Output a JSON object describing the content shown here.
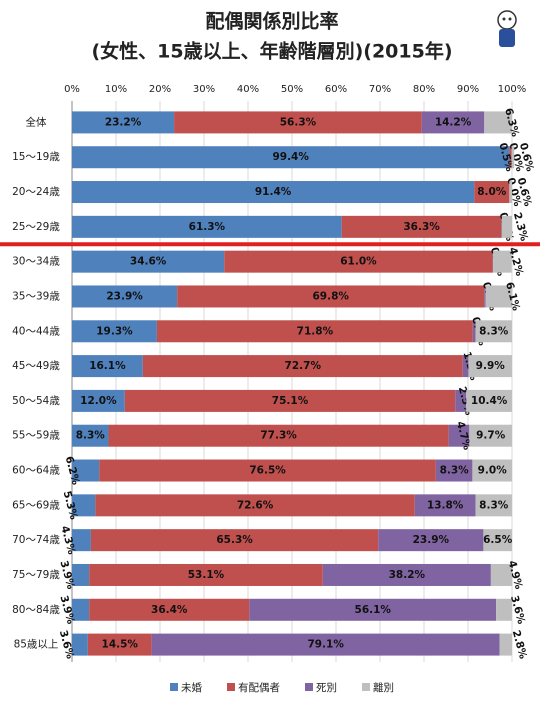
{
  "chart_data": {
    "type": "stacked-bar",
    "orientation": "horizontal",
    "title": "配偶関係別比率",
    "subtitle": "(女性、15歳以上、年齢階層別)(2015年)",
    "categories": [
      "全体",
      "15〜19歳",
      "20〜24歳",
      "25〜29歳",
      "30〜34歳",
      "35〜39歳",
      "40〜44歳",
      "45〜49歳",
      "50〜54歳",
      "55〜59歳",
      "60〜64歳",
      "65〜69歳",
      "70〜74歳",
      "75〜79歳",
      "80〜84歳",
      "85歳以上"
    ],
    "series": [
      {
        "name": "未婚",
        "color": "#4f81bd",
        "values": [
          23.2,
          99.4,
          91.4,
          61.3,
          34.6,
          23.9,
          19.3,
          16.1,
          12.0,
          8.3,
          6.2,
          5.3,
          4.3,
          3.9,
          3.9,
          3.6
        ],
        "value_labels": [
          "23.2%",
          "99.4%",
          "91.4%",
          "61.3%",
          "34.6%",
          "23.9%",
          "19.3%",
          "16.1%",
          "12.0%",
          "8.3%",
          "6.2%",
          "5.3%",
          "4.3%",
          "3.9%",
          "3.9%",
          "3.6%"
        ]
      },
      {
        "name": "有配偶者",
        "color": "#c0504d",
        "values": [
          56.3,
          0.5,
          8.0,
          36.3,
          61.0,
          69.8,
          71.8,
          72.7,
          75.1,
          77.3,
          76.5,
          72.6,
          65.3,
          53.1,
          36.4,
          14.5
        ],
        "value_labels": [
          "56.3%",
          "0.5%",
          "8.0%",
          "36.3%",
          "61.0%",
          "69.8%",
          "71.8%",
          "72.7%",
          "75.1%",
          "77.3%",
          "76.5%",
          "72.6%",
          "65.3%",
          "53.1%",
          "36.4%",
          "14.5%"
        ]
      },
      {
        "name": "死別",
        "color": "#8064a2",
        "values": [
          14.2,
          0.0,
          0.0,
          0.1,
          0.1,
          0.3,
          0.6,
          1.3,
          2.5,
          4.7,
          8.3,
          13.8,
          23.9,
          38.2,
          56.1,
          79.1
        ],
        "value_labels": [
          "14.2%",
          "0.0%",
          "0.0%",
          "0.1%",
          "0.1%",
          "0.3%",
          "0.6%",
          "1.3%",
          "2.5%",
          "4.7%",
          "8.3%",
          "13.8%",
          "23.9%",
          "38.2%",
          "56.1%",
          "79.1%"
        ]
      },
      {
        "name": "離別",
        "color": "#bfbfbf",
        "values": [
          6.3,
          0.6,
          0.6,
          2.3,
          4.2,
          6.1,
          8.3,
          9.9,
          10.4,
          9.7,
          9.0,
          8.3,
          6.5,
          4.9,
          3.6,
          2.8
        ],
        "value_labels": [
          "6.3%",
          "0.6%",
          "0.6%",
          "2.3%",
          "4.2%",
          "6.1%",
          "8.3%",
          "9.9%",
          "10.4%",
          "9.7%",
          "9.0%",
          "8.3%",
          "6.5%",
          "4.9%",
          "3.6%",
          "2.8%"
        ]
      }
    ],
    "xlim": [
      0,
      100
    ],
    "xticks": [
      {
        "value": 0,
        "label": "0%"
      },
      {
        "value": 10,
        "label": "10%"
      },
      {
        "value": 20,
        "label": "20%"
      },
      {
        "value": 30,
        "label": "30%"
      },
      {
        "value": 40,
        "label": "40%"
      },
      {
        "value": 50,
        "label": "50%"
      },
      {
        "value": 60,
        "label": "60%"
      },
      {
        "value": 70,
        "label": "70%"
      },
      {
        "value": 80,
        "label": "80%"
      },
      {
        "value": 90,
        "label": "90%"
      },
      {
        "value": 100,
        "label": "100%"
      }
    ],
    "grid": true,
    "legend": "bottom"
  }
}
